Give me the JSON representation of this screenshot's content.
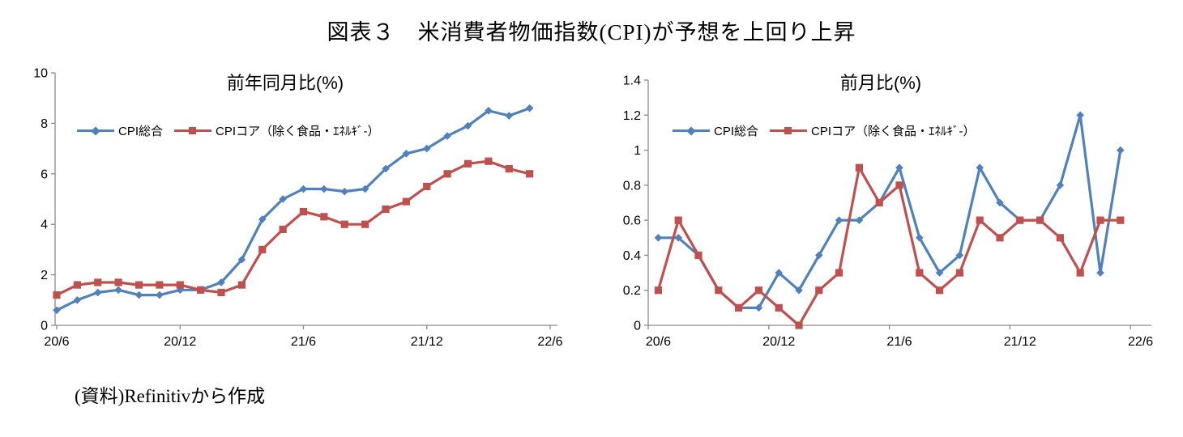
{
  "page": {
    "title": "図表３　米消費者物価指数(CPI)が予想を上回り上昇",
    "source": "(資料)Refinitivから作成"
  },
  "axis_color": "#8a8a8a",
  "chart_data": [
    {
      "type": "line",
      "title": "前年同月比(%)",
      "categories": [
        "20/6",
        "20/7",
        "20/8",
        "20/9",
        "20/10",
        "20/11",
        "20/12",
        "21/1",
        "21/2",
        "21/3",
        "21/4",
        "21/5",
        "21/6",
        "21/7",
        "21/8",
        "21/9",
        "21/10",
        "21/11",
        "21/12",
        "22/1",
        "22/2",
        "22/3",
        "22/4",
        "22/5"
      ],
      "x_ticklabels": [
        "20/6",
        "20/12",
        "21/6",
        "21/12",
        "22/6"
      ],
      "x_tick_months": [
        0,
        6,
        12,
        18,
        24
      ],
      "ylim": [
        0,
        10
      ],
      "ytick_step": 2,
      "grid": false,
      "legend_position": "inside-top-left",
      "series": [
        {
          "name": "CPI総合",
          "color": "#4F81BD",
          "marker": "diamond",
          "values": [
            0.6,
            1.0,
            1.3,
            1.4,
            1.2,
            1.2,
            1.4,
            1.4,
            1.7,
            2.6,
            4.2,
            5.0,
            5.4,
            5.4,
            5.3,
            5.4,
            6.2,
            6.8,
            7.0,
            7.5,
            7.9,
            8.5,
            8.3,
            8.6
          ]
        },
        {
          "name": "CPIコア（除く食品・ｴﾈﾙｷﾞ-）",
          "color": "#C0504D",
          "marker": "square",
          "values": [
            1.2,
            1.6,
            1.7,
            1.7,
            1.6,
            1.6,
            1.6,
            1.4,
            1.3,
            1.6,
            3.0,
            3.8,
            4.5,
            4.3,
            4.0,
            4.0,
            4.6,
            4.9,
            5.5,
            6.0,
            6.4,
            6.5,
            6.2,
            6.0
          ]
        }
      ]
    },
    {
      "type": "line",
      "title": "前月比(%)",
      "categories": [
        "20/6",
        "20/7",
        "20/8",
        "20/9",
        "20/10",
        "20/11",
        "20/12",
        "21/1",
        "21/2",
        "21/3",
        "21/4",
        "21/5",
        "21/6",
        "21/7",
        "21/8",
        "21/9",
        "21/10",
        "21/11",
        "21/12",
        "22/1",
        "22/2",
        "22/3",
        "22/4",
        "22/5"
      ],
      "x_ticklabels": [
        "20/6",
        "20/12",
        "21/6",
        "21/12",
        "22/6"
      ],
      "x_tick_months": [
        0,
        6,
        12,
        18,
        24
      ],
      "ylim": [
        0,
        1.4
      ],
      "ytick_step": 0.2,
      "grid": false,
      "legend_position": "inside-top-left",
      "series": [
        {
          "name": "CPI総合",
          "color": "#4F81BD",
          "marker": "diamond",
          "values": [
            0.5,
            0.5,
            0.4,
            0.2,
            0.1,
            0.1,
            0.3,
            0.2,
            0.4,
            0.6,
            0.6,
            0.7,
            0.9,
            0.5,
            0.3,
            0.4,
            0.9,
            0.7,
            0.6,
            0.6,
            0.8,
            1.2,
            0.3,
            1.0
          ]
        },
        {
          "name": "CPIコア（除く食品・ｴﾈﾙｷﾞ-）",
          "color": "#C0504D",
          "marker": "square",
          "values": [
            0.2,
            0.6,
            0.4,
            0.2,
            0.1,
            0.2,
            0.1,
            0.0,
            0.2,
            0.3,
            0.9,
            0.7,
            0.8,
            0.3,
            0.2,
            0.3,
            0.6,
            0.5,
            0.6,
            0.6,
            0.5,
            0.3,
            0.6,
            0.6
          ]
        }
      ]
    }
  ]
}
